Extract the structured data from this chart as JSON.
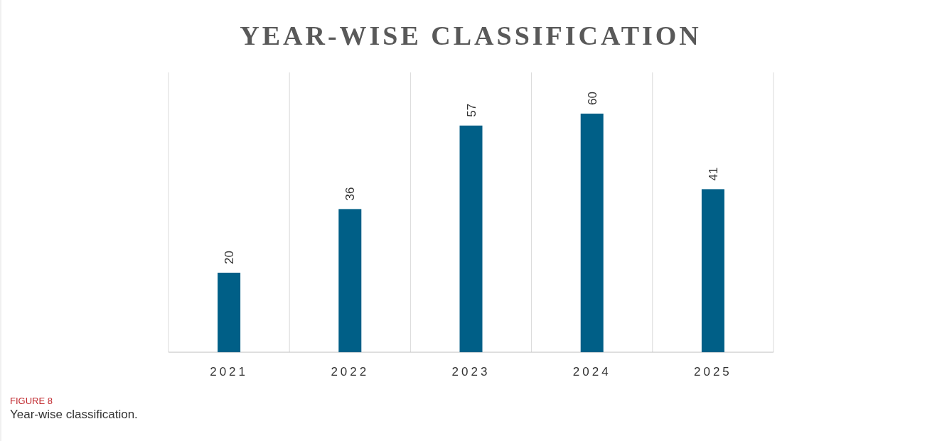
{
  "chart_data": {
    "type": "bar",
    "title": "YEAR-WISE CLASSIFICATION",
    "categories": [
      "2021",
      "2022",
      "2023",
      "2024",
      "2025"
    ],
    "values": [
      20,
      36,
      57,
      60,
      41
    ],
    "color": "#005f87",
    "data_labels": true,
    "grid": "x",
    "annotations": [
      "FIGURE 8",
      "Year-wise classification."
    ]
  }
}
